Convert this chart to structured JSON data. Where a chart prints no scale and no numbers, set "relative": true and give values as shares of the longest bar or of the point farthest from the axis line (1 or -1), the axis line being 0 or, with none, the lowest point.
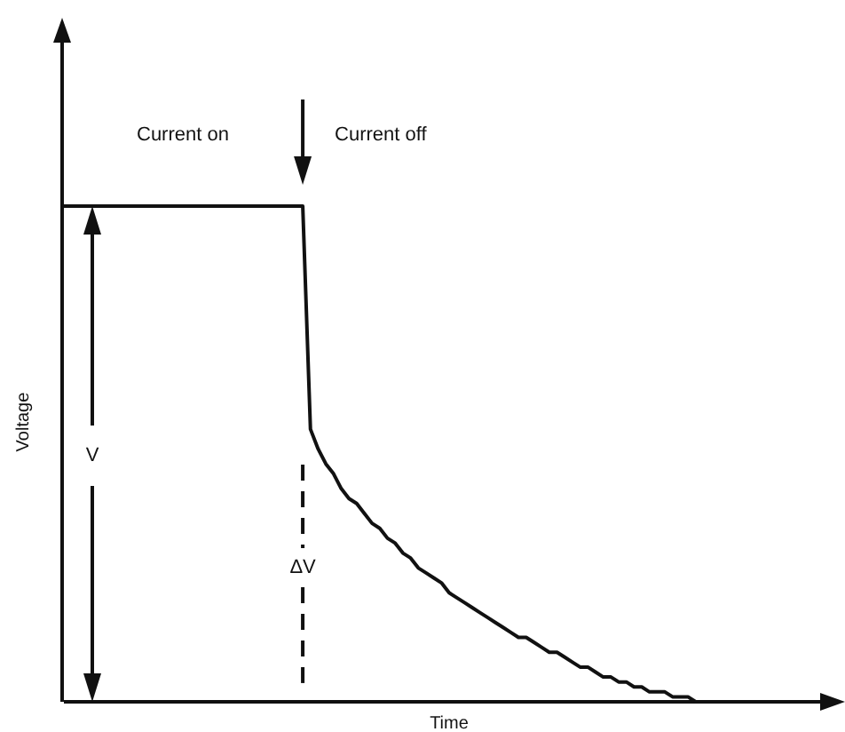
{
  "chart_data": {
    "type": "line",
    "relative": true,
    "xlabel": "Time",
    "ylabel": "Voltage",
    "categories": [
      null,
      null,
      null,
      null,
      null,
      null,
      null,
      null,
      null,
      null,
      null,
      null,
      null,
      null,
      null,
      null,
      null,
      null,
      null,
      null,
      null,
      null,
      null,
      null,
      null,
      null,
      null,
      null,
      null,
      null,
      null,
      null,
      null,
      null,
      null,
      null,
      null,
      null,
      null,
      null,
      null,
      null,
      null,
      null,
      null,
      null,
      null,
      null,
      null,
      null,
      null,
      null,
      null,
      null,
      null,
      null,
      null,
      null,
      null,
      null,
      null,
      null,
      null,
      null,
      null,
      null,
      null,
      null,
      null,
      null,
      null,
      null,
      null,
      null,
      null,
      null,
      null,
      null,
      null,
      null,
      null,
      null,
      null,
      null,
      null,
      null,
      null,
      null,
      null,
      null,
      null,
      null,
      null,
      null,
      null,
      null,
      null,
      null,
      null,
      null,
      null
    ],
    "series": [
      {
        "color": "#111111",
        "values": [
          1,
          1,
          1,
          1,
          1,
          1,
          1,
          1,
          1,
          1,
          1,
          1,
          1,
          1,
          1,
          1,
          1,
          1,
          1,
          1,
          1,
          1,
          1,
          1,
          1,
          1,
          1,
          1,
          1,
          1,
          1,
          1,
          0.55,
          0.51,
          0.48,
          0.46,
          0.43,
          0.41,
          0.4,
          0.38,
          0.36,
          0.35,
          0.33,
          0.32,
          0.3,
          0.29,
          0.27,
          0.26,
          0.25,
          0.24,
          0.22,
          0.21,
          0.2,
          0.19,
          0.18,
          0.17,
          0.16,
          0.15,
          0.14,
          0.13,
          0.13,
          0.12,
          0.11,
          0.1,
          0.1,
          0.09,
          0.08,
          0.07,
          0.07,
          0.06,
          0.05,
          0.05,
          0.04,
          0.04,
          0.03,
          0.03,
          0.02,
          0.02,
          0.02,
          0.01,
          0.01,
          0.01,
          0,
          0,
          0,
          0,
          0,
          0,
          0,
          0,
          0,
          0,
          0,
          0,
          0,
          0,
          0,
          0,
          0,
          0,
          0
        ]
      }
    ],
    "annotations": [
      "Current on",
      "Current off",
      "V",
      "ΔV"
    ]
  }
}
